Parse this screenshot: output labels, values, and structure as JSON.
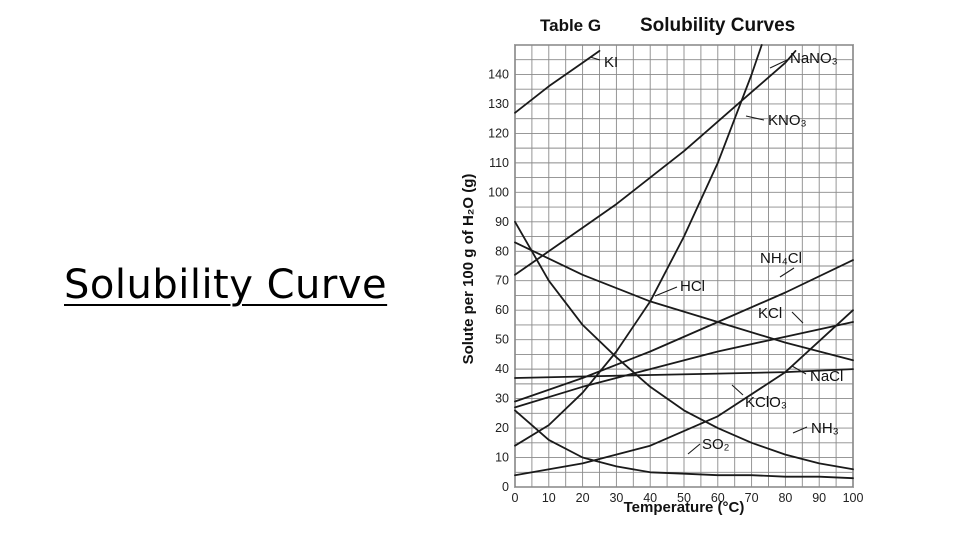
{
  "slide": {
    "title": "Solubility Curve"
  },
  "chart_data": {
    "type": "line",
    "title_prefix": "Table G",
    "title": "Solubility Curves",
    "xlabel": "Temperature (°C)",
    "ylabel": "Solute per 100 g of H₂O (g)",
    "xlim": [
      0,
      100
    ],
    "ylim": [
      0,
      150
    ],
    "xticks": [
      0,
      10,
      20,
      30,
      40,
      50,
      60,
      70,
      80,
      90,
      100
    ],
    "yticks": [
      0,
      10,
      20,
      30,
      40,
      50,
      60,
      70,
      80,
      90,
      100,
      110,
      120,
      130,
      140
    ],
    "grid": true,
    "series": [
      {
        "name": "KI",
        "x": [
          0,
          10,
          20,
          25
        ],
        "y": [
          127,
          136,
          144,
          148
        ]
      },
      {
        "name": "NaNO₃",
        "x": [
          0,
          10,
          20,
          30,
          40,
          50,
          60,
          70,
          80,
          83
        ],
        "y": [
          72,
          80,
          88,
          96,
          105,
          114,
          124,
          134,
          144,
          148
        ]
      },
      {
        "name": "KNO₃",
        "x": [
          0,
          10,
          20,
          30,
          40,
          50,
          60,
          65,
          70,
          73
        ],
        "y": [
          14,
          21,
          32,
          46,
          63,
          85,
          110,
          125,
          140,
          150
        ]
      },
      {
        "name": "NH₄Cl",
        "x": [
          0,
          20,
          40,
          60,
          80,
          100
        ],
        "y": [
          29,
          37,
          46,
          56,
          66,
          77
        ]
      },
      {
        "name": "HCl",
        "x": [
          0,
          20,
          40,
          60,
          80,
          100
        ],
        "y": [
          83,
          72,
          63,
          56,
          49,
          43
        ]
      },
      {
        "name": "KCl",
        "x": [
          0,
          20,
          40,
          60,
          80,
          100
        ],
        "y": [
          27,
          34,
          40,
          46,
          51,
          56
        ]
      },
      {
        "name": "NaCl",
        "x": [
          0,
          20,
          40,
          60,
          80,
          100
        ],
        "y": [
          37,
          37.5,
          38,
          38.5,
          39,
          40
        ]
      },
      {
        "name": "KClO₃",
        "x": [
          0,
          20,
          40,
          60,
          80,
          100
        ],
        "y": [
          4,
          8,
          14,
          24,
          39,
          60
        ]
      },
      {
        "name": "NH₃",
        "x": [
          0,
          10,
          20,
          30,
          40,
          50,
          60,
          70,
          80,
          90,
          100
        ],
        "y": [
          90,
          70,
          55,
          44,
          34,
          26,
          20,
          15,
          11,
          8,
          6
        ]
      },
      {
        "name": "SO₂",
        "x": [
          0,
          10,
          20,
          30,
          40,
          50,
          60,
          70,
          80,
          90,
          100
        ],
        "y": [
          26,
          16,
          10,
          7,
          5,
          4.5,
          4,
          4,
          3.5,
          3.5,
          3
        ]
      }
    ],
    "annotations": [
      {
        "text": "KI",
        "series": "KI"
      },
      {
        "text": "NaNO₃",
        "series": "NaNO₃"
      },
      {
        "text": "KNO₃",
        "series": "KNO₃"
      },
      {
        "text": "NH₄Cl",
        "series": "NH₄Cl"
      },
      {
        "text": "HCl",
        "series": "HCl"
      },
      {
        "text": "KCl",
        "series": "KCl"
      },
      {
        "text": "NaCl",
        "series": "NaCl"
      },
      {
        "text": "KClO₃",
        "series": "KClO₃"
      },
      {
        "text": "NH₃",
        "series": "NH₃"
      },
      {
        "text": "SO₂",
        "series": "SO₂"
      }
    ]
  }
}
